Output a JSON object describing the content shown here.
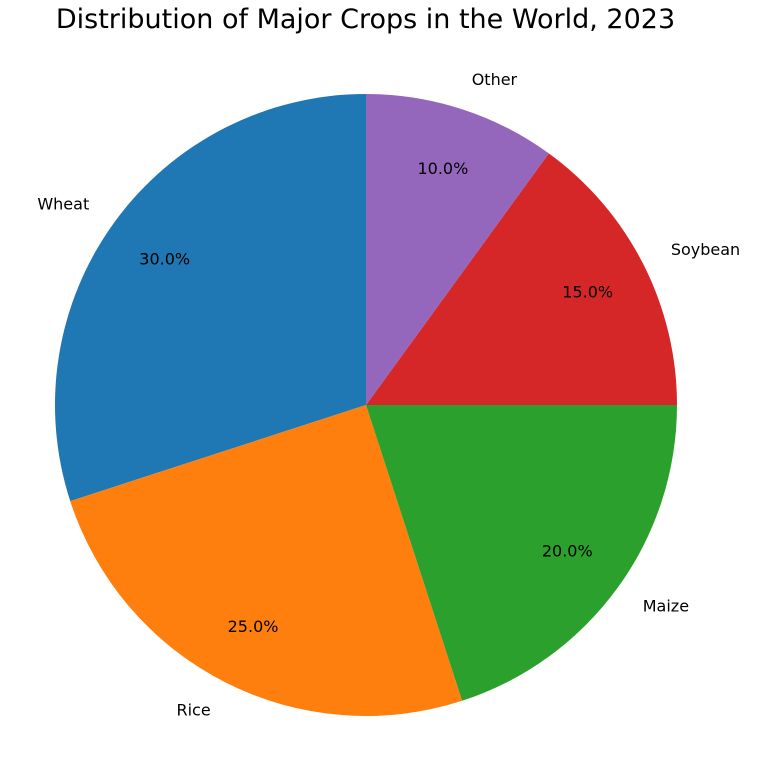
{
  "chart_data": {
    "type": "pie",
    "title": "Distribution of Major Crops in the World, 2023",
    "start_angle_deg": 90,
    "direction": "counterclockwise",
    "slices": [
      {
        "label": "Wheat",
        "value": 30.0,
        "pct_label": "30.0%",
        "color": "#1f77b4"
      },
      {
        "label": "Rice",
        "value": 25.0,
        "pct_label": "25.0%",
        "color": "#ff7f0e"
      },
      {
        "label": "Maize",
        "value": 20.0,
        "pct_label": "20.0%",
        "color": "#2ca02c"
      },
      {
        "label": "Soybean",
        "value": 15.0,
        "pct_label": "15.0%",
        "color": "#d62728"
      },
      {
        "label": "Other",
        "value": 10.0,
        "pct_label": "10.0%",
        "color": "#9467bd"
      }
    ]
  }
}
